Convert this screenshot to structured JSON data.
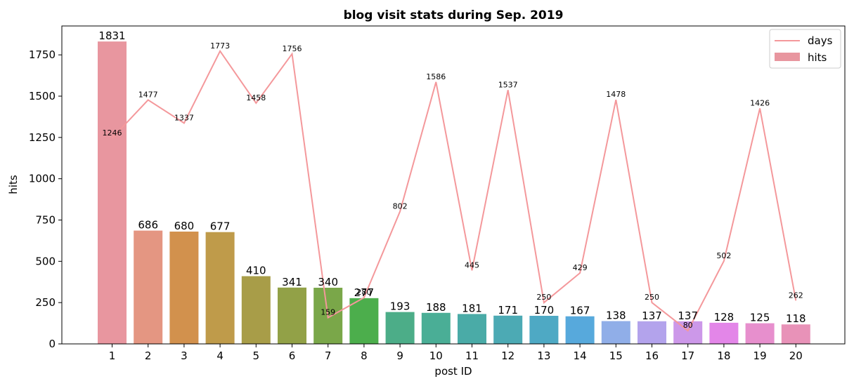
{
  "chart_data": {
    "type": "bar",
    "title": "blog visit stats during Sep. 2019",
    "xlabel": "post ID",
    "ylabel": "hits",
    "categories": [
      "1",
      "2",
      "3",
      "4",
      "5",
      "6",
      "7",
      "8",
      "9",
      "10",
      "11",
      "12",
      "13",
      "14",
      "15",
      "16",
      "17",
      "18",
      "19",
      "20"
    ],
    "ylim": [
      0,
      1925
    ],
    "yticks": [
      0,
      250,
      500,
      750,
      1000,
      1250,
      1500,
      1750
    ],
    "grid": false,
    "legend_position": "top-right",
    "series": [
      {
        "name": "hits",
        "kind": "bar",
        "values": [
          1831,
          686,
          680,
          677,
          410,
          341,
          340,
          277,
          193,
          188,
          181,
          171,
          170,
          167,
          138,
          137,
          137,
          128,
          125,
          118
        ],
        "colors": [
          "#e8969f",
          "#e49682",
          "#d2914d",
          "#bf9b4a",
          "#a89d48",
          "#92a147",
          "#7aa749",
          "#4cae4c",
          "#4cad88",
          "#4aae96",
          "#4aaba7",
          "#4caab4",
          "#4ea9c4",
          "#57a9dc",
          "#90aee8",
          "#b3a3ec",
          "#cc98e9",
          "#e386e8",
          "#e78fcd",
          "#e892b8"
        ]
      },
      {
        "name": "days",
        "kind": "line",
        "color": "#f4989b",
        "values": [
          1246,
          1477,
          1337,
          1773,
          1458,
          1756,
          159,
          280,
          802,
          1586,
          445,
          1537,
          250,
          429,
          1478,
          250,
          80,
          502,
          1426,
          262
        ]
      }
    ]
  }
}
